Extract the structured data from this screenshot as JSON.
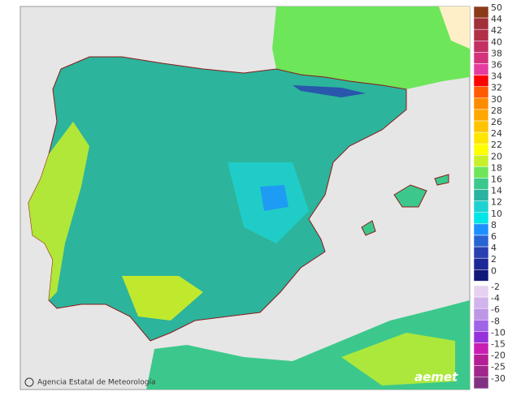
{
  "map": {
    "credit": "Agencia Estatal de Meteorología",
    "logo": "aemet"
  },
  "legend": {
    "upper": [
      {
        "label": "50",
        "color": "#8b3a1a"
      },
      {
        "label": "44",
        "color": "#a0303a"
      },
      {
        "label": "42",
        "color": "#b03048"
      },
      {
        "label": "40",
        "color": "#c33062"
      },
      {
        "label": "38",
        "color": "#d2337c"
      },
      {
        "label": "36",
        "color": "#e63ca0"
      },
      {
        "label": "34",
        "color": "#ff0000"
      },
      {
        "label": "32",
        "color": "#ff5a00"
      },
      {
        "label": "30",
        "color": "#ff8c00"
      },
      {
        "label": "28",
        "color": "#ffa800"
      },
      {
        "label": "26",
        "color": "#ffc400"
      },
      {
        "label": "24",
        "color": "#ffe600"
      },
      {
        "label": "22",
        "color": "#ffff00"
      },
      {
        "label": "20",
        "color": "#c8f028"
      },
      {
        "label": "18",
        "color": "#6ee65a"
      },
      {
        "label": "16",
        "color": "#3cc88c"
      },
      {
        "label": "14",
        "color": "#28b4a0"
      },
      {
        "label": "12",
        "color": "#1ed2d2"
      },
      {
        "label": "10",
        "color": "#00e6e6"
      },
      {
        "label": "8",
        "color": "#1e90ff"
      },
      {
        "label": "6",
        "color": "#2864d2"
      },
      {
        "label": "4",
        "color": "#2840b0"
      },
      {
        "label": "2",
        "color": "#1c2896"
      },
      {
        "label": "0",
        "color": "#101878"
      }
    ],
    "lower": [
      {
        "label": "-2",
        "color": "#e6d2f0"
      },
      {
        "label": "-4",
        "color": "#d2b4ec"
      },
      {
        "label": "-6",
        "color": "#be96e6"
      },
      {
        "label": "-8",
        "color": "#a064e6"
      },
      {
        "label": "-10",
        "color": "#9632dc"
      },
      {
        "label": "-15",
        "color": "#c81eb4"
      },
      {
        "label": "-20",
        "color": "#b41e96"
      },
      {
        "label": "-25",
        "color": "#a0288c"
      },
      {
        "label": "-30",
        "color": "#823282"
      }
    ]
  }
}
